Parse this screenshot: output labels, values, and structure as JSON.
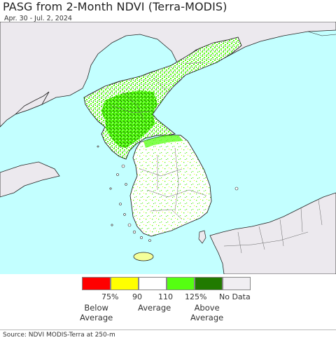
{
  "header": {
    "title": "PASG from 2-Month NDVI (Terra-MODIS)",
    "date_range": "Apr. 30 - Jul. 2, 2024"
  },
  "map": {
    "regions": [
      "North Korea",
      "South Korea",
      "Japan",
      "China",
      "Russia"
    ],
    "colors": {
      "ocean": "#c3ffff",
      "land_outside": "#ece9ee",
      "land_base": "#ffffff",
      "border": "#555555",
      "coast": "#222222"
    }
  },
  "legend": {
    "items": [
      {
        "color": "#ff0000",
        "tick": "75%"
      },
      {
        "color": "#ffff00",
        "tick": "90"
      },
      {
        "color": "#ffffff",
        "tick": "110"
      },
      {
        "color": "#55ff11",
        "tick": "125%"
      },
      {
        "color": "#217a00",
        "tick": "No Data"
      },
      {
        "color": "#f0eef2",
        "tick": ""
      }
    ],
    "below_label": "Below\nAverage",
    "average_label": "Average",
    "above_label": "Above\nAverage"
  },
  "footer": {
    "source": "Source: NDVI MODIS-Terra at 250-m"
  }
}
